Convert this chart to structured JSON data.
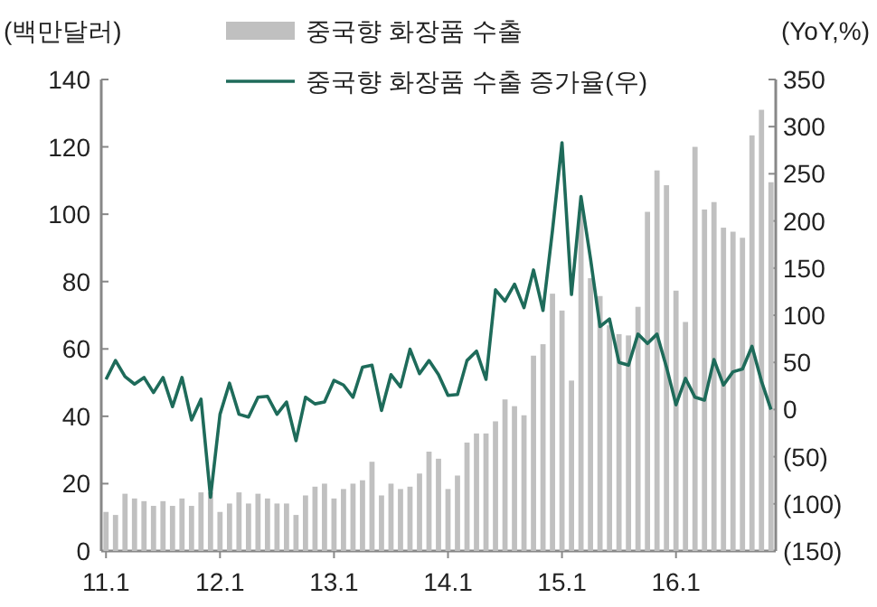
{
  "chart_data": {
    "type": "bar",
    "ylabel": "(백만달러)",
    "y2label": "(YoY,%)",
    "categories": [
      "11.1",
      null,
      null,
      null,
      null,
      null,
      null,
      null,
      null,
      null,
      null,
      null,
      "12.1",
      null,
      null,
      null,
      null,
      null,
      null,
      null,
      null,
      null,
      null,
      null,
      "13.1",
      null,
      null,
      null,
      null,
      null,
      null,
      null,
      null,
      null,
      null,
      null,
      "14.1",
      null,
      null,
      null,
      null,
      null,
      null,
      null,
      null,
      null,
      null,
      null,
      "15.1",
      null,
      null,
      null,
      null,
      null,
      null,
      null,
      null,
      null,
      null,
      null,
      "16.1",
      null,
      null,
      null,
      null,
      null,
      null,
      null,
      null,
      null,
      null
    ],
    "series": [
      {
        "name": "중국향 화장품 수출",
        "color": "#c0c0c0",
        "values": [
          11.6,
          10.7,
          17,
          15.6,
          14.8,
          13.4,
          14.8,
          13.4,
          15.6,
          13.4,
          17.4,
          17.4,
          11.6,
          14.1,
          17.4,
          14.1,
          17,
          15.6,
          14.1,
          14.1,
          10.7,
          16.5,
          19.1,
          20,
          15.6,
          18.4,
          20,
          21,
          26.5,
          16.5,
          20,
          18.4,
          19.1,
          23,
          29.5,
          27.4,
          18.4,
          22.4,
          32.2,
          34.9,
          34.9,
          38.5,
          45,
          43,
          40.3,
          58,
          61.4,
          76.4,
          71.4,
          50.6,
          101,
          81,
          75.7,
          67,
          64.4,
          64,
          72.5,
          100.7,
          113,
          108.6,
          77.3,
          68,
          120,
          101.4,
          103.6,
          96,
          94.8,
          93,
          123.4,
          131,
          109.5
        ]
      },
      {
        "name": "중국향 화장품 수출 증가율(우)",
        "type": "line",
        "axis": "y2",
        "color": "#1e6b5a",
        "values": [
          32,
          52,
          35,
          27,
          34,
          18,
          34,
          3,
          34,
          -11,
          11,
          -93,
          -5,
          28,
          -5,
          -8,
          13,
          14,
          -5,
          8,
          -33,
          13,
          6,
          8,
          31,
          26,
          13,
          45,
          47,
          -1,
          37,
          24,
          64,
          38,
          52,
          37,
          15,
          16,
          52,
          62,
          32,
          127,
          115,
          133,
          108,
          148,
          105,
          190,
          283,
          122,
          226,
          160,
          88,
          96,
          50,
          47,
          80,
          70,
          80,
          45,
          5,
          33,
          13,
          10,
          53,
          26,
          40,
          43,
          67,
          30,
          0
        ]
      }
    ],
    "ylim": [
      0,
      140
    ],
    "yticks": [
      0,
      20,
      40,
      60,
      80,
      100,
      120,
      140
    ],
    "y2lim": [
      -150,
      350
    ],
    "y2ticks": [
      {
        "value": -150,
        "label": "(150)"
      },
      {
        "value": -100,
        "label": "(100)"
      },
      {
        "value": -50,
        "label": "(50)"
      },
      0,
      50,
      100,
      150,
      200,
      250,
      300,
      350
    ],
    "legend": "top",
    "grid": false
  }
}
